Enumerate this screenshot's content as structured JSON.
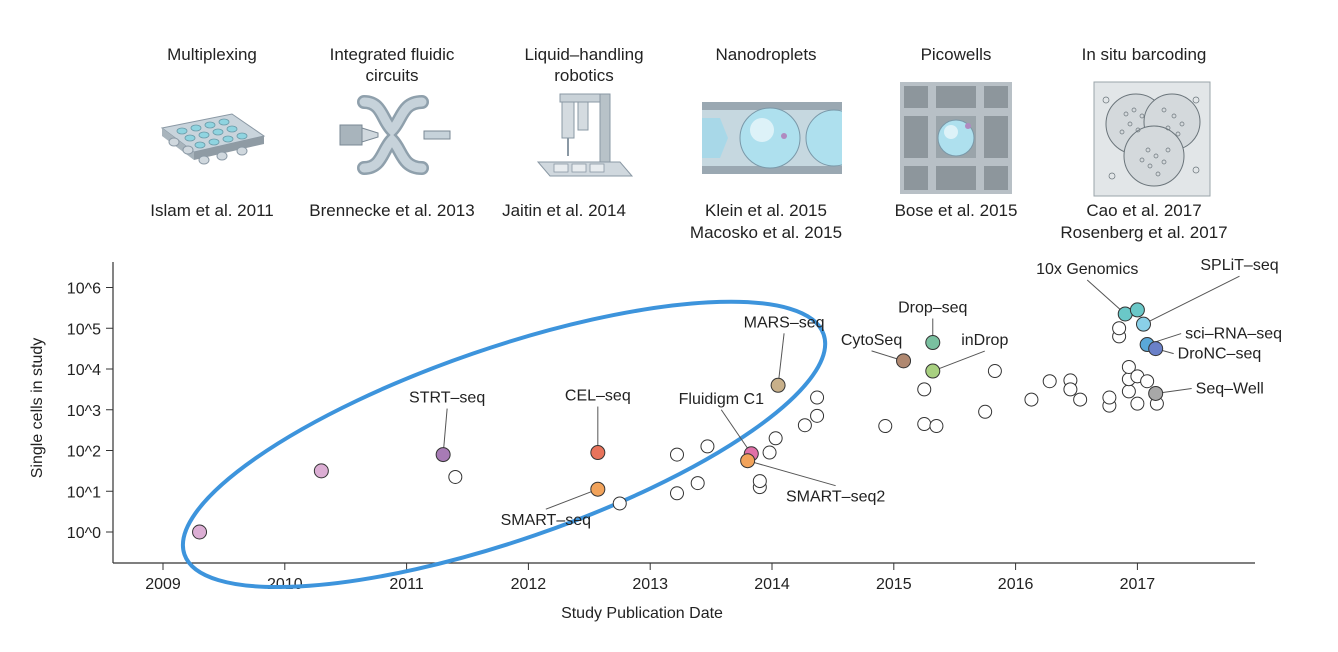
{
  "technologies": [
    {
      "name": "Multiplexing",
      "ref1": "Islam et al. 2011",
      "ref2": ""
    },
    {
      "name": "Integrated fluidic circuits",
      "ref1": "Brennecke et al. 2013",
      "ref2": ""
    },
    {
      "name": "Liquid–handling robotics",
      "ref1": "Jaitin et al. 2014",
      "ref2": ""
    },
    {
      "name": "Nanodroplets",
      "ref1": "Klein et al. 2015",
      "ref2": "Macosko et al. 2015"
    },
    {
      "name": "Picowells",
      "ref1": "Bose et al. 2015",
      "ref2": ""
    },
    {
      "name": "In situ barcoding",
      "ref1": "Cao et al. 2017",
      "ref2": "Rosenberg et al. 2017"
    }
  ],
  "chart_data": {
    "type": "scatter",
    "xlabel": "Study Publication Date",
    "ylabel": "Single cells in study",
    "xlim": [
      2008.6,
      2018.0
    ],
    "ylim": [
      -0.5,
      6.5
    ],
    "x_ticks": [
      2009,
      2010,
      2011,
      2012,
      2013,
      2014,
      2015,
      2016,
      2017
    ],
    "y_ticks": [
      {
        "value": 0,
        "label": "10^0"
      },
      {
        "value": 1,
        "label": "10^1"
      },
      {
        "value": 2,
        "label": "10^2"
      },
      {
        "value": 3,
        "label": "10^3"
      },
      {
        "value": 4,
        "label": "10^4"
      },
      {
        "value": 5,
        "label": "10^5"
      },
      {
        "value": 6,
        "label": "10^6"
      }
    ],
    "y_scale": "log10 (values are log10 of cell count)",
    "highlighted_points": [
      {
        "label": "",
        "x": 2009.3,
        "y": 0.0,
        "color": "#dcaed4"
      },
      {
        "label": "",
        "x": 2010.3,
        "y": 1.5,
        "color": "#dcaed4"
      },
      {
        "label": "STRT–seq",
        "x": 2011.3,
        "y": 1.9,
        "color": "#a77bb5"
      },
      {
        "label": "CEL–seq",
        "x": 2012.57,
        "y": 1.95,
        "color": "#e8735b"
      },
      {
        "label": "SMART–seq",
        "x": 2012.57,
        "y": 1.05,
        "color": "#f2a35b"
      },
      {
        "label": "MARS–seq",
        "x": 2014.05,
        "y": 3.6,
        "color": "#c8b08a"
      },
      {
        "label": "Fluidigm C1",
        "x": 2013.83,
        "y": 1.92,
        "color": "#e070a8"
      },
      {
        "label": "SMART–seq2",
        "x": 2013.8,
        "y": 1.75,
        "color": "#f2a35b"
      },
      {
        "label": "CytoSeq",
        "x": 2015.08,
        "y": 4.2,
        "color": "#b08870"
      },
      {
        "label": "Drop–seq",
        "x": 2015.32,
        "y": 4.65,
        "color": "#7ac0a0"
      },
      {
        "label": "inDrop",
        "x": 2015.32,
        "y": 3.95,
        "color": "#a8d080"
      },
      {
        "label": "10x Genomics",
        "x": 2016.9,
        "y": 5.35,
        "color": "#6ac8c8"
      },
      {
        "label": "",
        "x": 2017.0,
        "y": 5.45,
        "color": "#6ac8c8"
      },
      {
        "label": "SPLiT–seq",
        "x": 2017.05,
        "y": 5.1,
        "color": "#8ad0e8"
      },
      {
        "label": "sci–RNA–seq",
        "x": 2017.08,
        "y": 4.6,
        "color": "#5aa8d8"
      },
      {
        "label": "DroNC–seq",
        "x": 2017.15,
        "y": 4.5,
        "color": "#6a80c8"
      },
      {
        "label": "Seq–Well",
        "x": 2017.15,
        "y": 3.4,
        "color": "#a8a8a8"
      }
    ],
    "unlabeled_points": [
      [
        2011.4,
        1.35
      ],
      [
        2012.75,
        0.7
      ],
      [
        2013.22,
        0.95
      ],
      [
        2013.22,
        1.9
      ],
      [
        2013.39,
        1.2
      ],
      [
        2013.47,
        2.1
      ],
      [
        2013.9,
        1.1
      ],
      [
        2013.9,
        1.25
      ],
      [
        2013.98,
        1.95
      ],
      [
        2014.03,
        2.3
      ],
      [
        2014.27,
        2.62
      ],
      [
        2014.37,
        2.85
      ],
      [
        2014.37,
        3.3
      ],
      [
        2014.93,
        2.6
      ],
      [
        2015.25,
        3.5
      ],
      [
        2015.25,
        2.65
      ],
      [
        2015.35,
        2.6
      ],
      [
        2015.75,
        2.95
      ],
      [
        2015.83,
        3.95
      ],
      [
        2016.13,
        3.25
      ],
      [
        2016.28,
        3.7
      ],
      [
        2016.45,
        3.72
      ],
      [
        2016.45,
        3.5
      ],
      [
        2016.53,
        3.25
      ],
      [
        2016.77,
        3.1
      ],
      [
        2016.77,
        3.3
      ],
      [
        2016.93,
        3.45
      ],
      [
        2016.93,
        3.75
      ],
      [
        2016.93,
        4.05
      ],
      [
        2016.85,
        4.8
      ],
      [
        2016.85,
        5.0
      ],
      [
        2017.0,
        3.15
      ],
      [
        2017.0,
        3.82
      ],
      [
        2017.08,
        3.7
      ],
      [
        2017.16,
        3.15
      ]
    ],
    "ellipse_highlight": {
      "center_x": 2011.8,
      "center_y": 2.15,
      "color": "#3d94dc"
    }
  }
}
